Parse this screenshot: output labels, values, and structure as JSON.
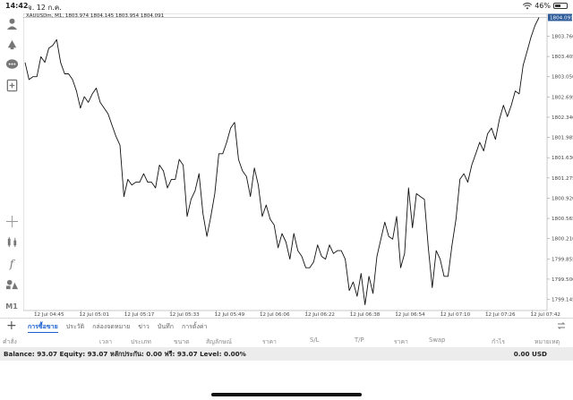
{
  "status": {
    "time": "14:42",
    "date": "จ. 12 ก.ค.",
    "battery": "46%",
    "battery_level": 0.46
  },
  "chart_info": "XAUUSDm, M1, 1803.974 1804.145 1803.954 1804.091",
  "toolbar": {
    "timeframe": "M1"
  },
  "tabs": [
    "การซื้อขาย",
    "ประวัติ",
    "กล่องจดหมาย",
    "ข่าว",
    "บันทึก",
    "การตั้งค่า"
  ],
  "columns": [
    "คำสั่ง",
    "เวลา",
    "ประเภท",
    "ขนาด",
    "สัญลักษณ์",
    "ราคา",
    "S/L",
    "T/P",
    "ราคา",
    "Swap",
    "กำไร",
    "หมายเหตุ"
  ],
  "balance": {
    "text": "Balance: 93.07  Equity: 93.07  หลักประกัน: 0.00  ฟรี: 93.07  Level: 0.00%",
    "profit": "0.00  USD"
  },
  "chart_data": {
    "type": "line",
    "symbol": "XAUUSDm",
    "timeframe": "M1",
    "current_price_label": "1804.091",
    "ylim": [
      1798.95,
      1804.16
    ],
    "y_ticks": [
      "1803.760",
      "1803.405",
      "1803.050",
      "1802.695",
      "1802.340",
      "1801.985",
      "1801.630",
      "1801.275",
      "1800.920",
      "1800.565",
      "1800.210",
      "1799.855",
      "1799.500",
      "1799.145"
    ],
    "x_ticks": [
      "12 Jul 04:45",
      "12 Jul 05:01",
      "12 Jul 05:17",
      "12 Jul 05:33",
      "12 Jul 05:49",
      "12 Jul 06:06",
      "12 Jul 06:22",
      "12 Jul 06:38",
      "12 Jul 06:54",
      "12 Jul 07:10",
      "12 Jul 07:26",
      "12 Jul 07:42"
    ],
    "x_start": "04:45",
    "x_step_minutes": 2.6667,
    "grid": false,
    "values": [
      1803.3,
      1803.0,
      1803.05,
      1803.05,
      1803.4,
      1803.3,
      1803.55,
      1803.6,
      1803.7,
      1803.3,
      1803.1,
      1803.1,
      1803.0,
      1802.8,
      1802.5,
      1802.7,
      1802.6,
      1802.75,
      1802.85,
      1802.6,
      1802.5,
      1802.4,
      1802.2,
      1802.0,
      1801.85,
      1800.95,
      1801.25,
      1801.15,
      1801.2,
      1801.2,
      1801.35,
      1801.2,
      1801.2,
      1801.1,
      1801.5,
      1801.4,
      1801.1,
      1801.25,
      1801.25,
      1801.6,
      1801.5,
      1800.6,
      1800.9,
      1801.05,
      1801.35,
      1800.65,
      1800.25,
      1800.6,
      1801.0,
      1801.7,
      1801.7,
      1801.9,
      1802.15,
      1802.25,
      1801.6,
      1801.4,
      1801.3,
      1800.95,
      1801.45,
      1801.15,
      1800.6,
      1800.8,
      1800.55,
      1800.45,
      1800.05,
      1800.3,
      1800.15,
      1799.85,
      1800.3,
      1800.0,
      1799.9,
      1799.7,
      1799.7,
      1799.8,
      1800.1,
      1799.9,
      1799.85,
      1800.1,
      1799.95,
      1800.0,
      1800.0,
      1799.85,
      1799.3,
      1799.45,
      1799.2,
      1799.6,
      1799.05,
      1799.55,
      1799.25,
      1799.9,
      1800.2,
      1800.5,
      1800.25,
      1800.2,
      1800.6,
      1799.7,
      1799.95,
      1801.1,
      1800.4,
      1801.0,
      1800.95,
      1800.9,
      1800.05,
      1799.35,
      1800.0,
      1799.85,
      1799.55,
      1799.55,
      1800.1,
      1800.55,
      1801.25,
      1801.35,
      1801.2,
      1801.5,
      1801.7,
      1801.9,
      1801.75,
      1802.05,
      1802.15,
      1801.95,
      1802.3,
      1802.55,
      1802.35,
      1802.55,
      1802.8,
      1802.75,
      1803.25,
      1803.5,
      1803.75,
      1803.95,
      1804.09
    ]
  }
}
